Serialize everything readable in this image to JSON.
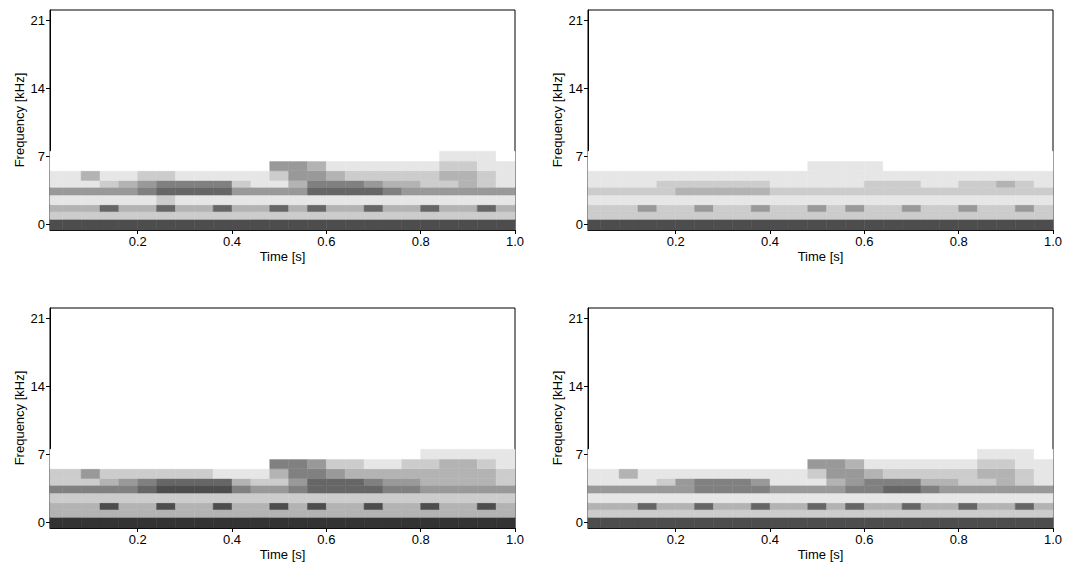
{
  "chart_data": [
    {
      "type": "heatmap",
      "x_label": "Time [s]",
      "y_label": "Frequency [kHz]",
      "xlim": [
        0.014,
        1.0
      ],
      "xticks": [
        0.2,
        0.4,
        0.6,
        0.8,
        {
          "value": 1.0,
          "label": "1.0"
        }
      ],
      "ylim": [
        -0.6,
        22.05
      ],
      "yticks": [
        0,
        7,
        14,
        21
      ],
      "x_edges": [
        0,
        0.04,
        0.08,
        0.12,
        0.16,
        0.2,
        0.24,
        0.28,
        0.32,
        0.36,
        0.4,
        0.44,
        0.48,
        0.52,
        0.56,
        0.6,
        0.64,
        0.68,
        0.72,
        0.76,
        0.8,
        0.84,
        0.88,
        0.92,
        0.96,
        1.0
      ],
      "y_edges": [
        -0.6,
        0.5,
        1.3,
        2.0,
        3.0,
        3.8,
        4.5,
        5.5,
        6.5,
        7.5
      ],
      "zlim": [
        0,
        10
      ],
      "color": "#000000",
      "z": [
        [
          7,
          7,
          7,
          7,
          7,
          7,
          7,
          7,
          7,
          7,
          7,
          7,
          7,
          7,
          7,
          7,
          7,
          7,
          7,
          7,
          7,
          7,
          7,
          7,
          7
        ],
        [
          2,
          2,
          2,
          2,
          2,
          2,
          2,
          2,
          2,
          2,
          2,
          2,
          2,
          2,
          2,
          2,
          2,
          2,
          2,
          2,
          2,
          2,
          2,
          2,
          2
        ],
        [
          3,
          3,
          3,
          6,
          3,
          3,
          6,
          3,
          3,
          6,
          3,
          3,
          6,
          3,
          6,
          3,
          3,
          6,
          3,
          3,
          6,
          3,
          3,
          6,
          3
        ],
        [
          1,
          1,
          1,
          1,
          1,
          1,
          2,
          1,
          1,
          1,
          1,
          1,
          1,
          1,
          1,
          1,
          1,
          1,
          1,
          1,
          1,
          1,
          1,
          1,
          1
        ],
        [
          4,
          4,
          4,
          4,
          4,
          5,
          6,
          6,
          6,
          6,
          4,
          4,
          4,
          4,
          6,
          6,
          6,
          6,
          5,
          4,
          4,
          4,
          4,
          4,
          4
        ],
        [
          1,
          1,
          1,
          2,
          3,
          4,
          5,
          5,
          5,
          5,
          2,
          1,
          1,
          3,
          5,
          5,
          5,
          4,
          3,
          3,
          2,
          2,
          3,
          2,
          1
        ],
        [
          1,
          1,
          3,
          1,
          1,
          2,
          2,
          1,
          1,
          1,
          1,
          1,
          2,
          4,
          4,
          3,
          2,
          2,
          2,
          2,
          2,
          3,
          3,
          2,
          1
        ],
        [
          0,
          0,
          0,
          0,
          0,
          0,
          0,
          0,
          0,
          0,
          0,
          0,
          4,
          4,
          3,
          1,
          1,
          1,
          1,
          1,
          1,
          2,
          2,
          1,
          1
        ],
        [
          0,
          0,
          0,
          0,
          0,
          0,
          0,
          0,
          0,
          0,
          0,
          0,
          0,
          0,
          0,
          0,
          0,
          0,
          0,
          0,
          0,
          1,
          1,
          1,
          0
        ]
      ]
    },
    {
      "type": "heatmap",
      "x_label": "Time [s]",
      "y_label": "Frequency [kHz]",
      "xlim": [
        0.014,
        1.0
      ],
      "xticks": [
        0.2,
        0.4,
        0.6,
        0.8,
        {
          "value": 1.0,
          "label": "1.0"
        }
      ],
      "ylim": [
        -0.6,
        22.05
      ],
      "yticks": [
        0,
        7,
        14,
        21
      ],
      "x_edges": [
        0,
        0.04,
        0.08,
        0.12,
        0.16,
        0.2,
        0.24,
        0.28,
        0.32,
        0.36,
        0.4,
        0.44,
        0.48,
        0.52,
        0.56,
        0.6,
        0.64,
        0.68,
        0.72,
        0.76,
        0.8,
        0.84,
        0.88,
        0.92,
        0.96,
        1.0
      ],
      "y_edges": [
        -0.6,
        0.5,
        1.3,
        2.0,
        3.0,
        3.8,
        4.5,
        5.5,
        6.5,
        7.5
      ],
      "zlim": [
        0,
        10
      ],
      "color": "#000000",
      "z": [
        [
          7,
          7,
          7,
          7,
          7,
          7,
          7,
          7,
          7,
          7,
          7,
          7,
          7,
          7,
          7,
          7,
          7,
          7,
          7,
          7,
          7,
          7,
          7,
          7,
          7
        ],
        [
          2,
          2,
          2,
          2,
          2,
          2,
          2,
          2,
          2,
          2,
          2,
          2,
          2,
          2,
          2,
          2,
          2,
          2,
          2,
          2,
          2,
          2,
          2,
          2,
          2
        ],
        [
          2,
          2,
          2,
          4,
          2,
          2,
          4,
          2,
          2,
          4,
          2,
          2,
          4,
          2,
          4,
          2,
          2,
          4,
          2,
          2,
          4,
          2,
          2,
          4,
          2
        ],
        [
          1,
          1,
          1,
          1,
          1,
          1,
          1,
          1,
          1,
          1,
          1,
          1,
          1,
          1,
          1,
          1,
          1,
          1,
          1,
          1,
          1,
          1,
          1,
          1,
          1
        ],
        [
          2,
          2,
          2,
          2,
          2,
          3,
          3,
          3,
          3,
          3,
          2,
          2,
          2,
          2,
          2,
          2,
          2,
          2,
          2,
          2,
          2,
          2,
          2,
          2,
          2
        ],
        [
          1,
          1,
          1,
          1,
          2,
          2,
          2,
          2,
          2,
          2,
          1,
          1,
          1,
          1,
          1,
          2,
          2,
          2,
          1,
          1,
          2,
          2,
          3,
          2,
          1
        ],
        [
          1,
          1,
          1,
          1,
          1,
          1,
          1,
          1,
          1,
          1,
          1,
          1,
          1,
          1,
          1,
          1,
          1,
          1,
          1,
          1,
          1,
          1,
          1,
          1,
          1
        ],
        [
          0,
          0,
          0,
          0,
          0,
          0,
          0,
          0,
          0,
          0,
          0,
          0,
          1,
          1,
          1,
          1,
          0,
          0,
          0,
          0,
          0,
          0,
          0,
          0,
          0
        ],
        [
          0,
          0,
          0,
          0,
          0,
          0,
          0,
          0,
          0,
          0,
          0,
          0,
          0,
          0,
          0,
          0,
          0,
          0,
          0,
          0,
          0,
          0,
          0,
          0,
          0
        ]
      ]
    },
    {
      "type": "heatmap",
      "x_label": "Time [s]",
      "y_label": "Frequency [kHz]",
      "xlim": [
        0.014,
        1.0
      ],
      "xticks": [
        0.2,
        0.4,
        0.6,
        0.8,
        {
          "value": 1.0,
          "label": "1.0"
        }
      ],
      "ylim": [
        -0.6,
        22.05
      ],
      "yticks": [
        0,
        7,
        14,
        21
      ],
      "x_edges": [
        0,
        0.04,
        0.08,
        0.12,
        0.16,
        0.2,
        0.24,
        0.28,
        0.32,
        0.36,
        0.4,
        0.44,
        0.48,
        0.52,
        0.56,
        0.6,
        0.64,
        0.68,
        0.72,
        0.76,
        0.8,
        0.84,
        0.88,
        0.92,
        0.96,
        1.0
      ],
      "y_edges": [
        -0.6,
        0.5,
        1.3,
        2.0,
        3.0,
        3.8,
        4.5,
        5.5,
        6.5,
        7.5
      ],
      "zlim": [
        0,
        10
      ],
      "color": "#000000",
      "z": [
        [
          8,
          8,
          8,
          8,
          8,
          8,
          8,
          8,
          8,
          8,
          8,
          8,
          8,
          8,
          8,
          8,
          8,
          8,
          8,
          8,
          8,
          8,
          8,
          8,
          8
        ],
        [
          3,
          3,
          3,
          3,
          3,
          3,
          3,
          3,
          3,
          3,
          3,
          3,
          3,
          3,
          3,
          3,
          3,
          3,
          3,
          3,
          3,
          3,
          3,
          3,
          3
        ],
        [
          3,
          3,
          3,
          7,
          3,
          3,
          7,
          3,
          3,
          7,
          3,
          3,
          7,
          3,
          7,
          3,
          3,
          7,
          3,
          3,
          7,
          3,
          3,
          7,
          3
        ],
        [
          2,
          2,
          2,
          2,
          2,
          2,
          2,
          2,
          2,
          2,
          2,
          2,
          2,
          2,
          2,
          2,
          2,
          2,
          2,
          2,
          2,
          2,
          2,
          2,
          2
        ],
        [
          5,
          5,
          5,
          5,
          5,
          6,
          7,
          7,
          7,
          7,
          5,
          4,
          4,
          5,
          6,
          6,
          6,
          6,
          5,
          5,
          4,
          4,
          4,
          4,
          4
        ],
        [
          2,
          2,
          2,
          3,
          4,
          5,
          6,
          6,
          6,
          6,
          3,
          2,
          2,
          4,
          6,
          6,
          6,
          5,
          4,
          4,
          3,
          3,
          3,
          3,
          2
        ],
        [
          2,
          2,
          4,
          2,
          2,
          2,
          2,
          2,
          2,
          1,
          1,
          1,
          3,
          5,
          5,
          4,
          3,
          3,
          3,
          3,
          3,
          3,
          3,
          3,
          2
        ],
        [
          0,
          0,
          0,
          0,
          0,
          0,
          0,
          0,
          0,
          0,
          0,
          0,
          5,
          5,
          4,
          2,
          2,
          1,
          1,
          2,
          2,
          3,
          3,
          2,
          1
        ],
        [
          0,
          0,
          0,
          0,
          0,
          0,
          0,
          0,
          0,
          0,
          0,
          0,
          0,
          0,
          0,
          0,
          0,
          0,
          0,
          0,
          1,
          1,
          1,
          1,
          1
        ]
      ]
    },
    {
      "type": "heatmap",
      "x_label": "Time [s]",
      "y_label": "Frequency [kHz]",
      "xlim": [
        0.014,
        1.0
      ],
      "xticks": [
        0.2,
        0.4,
        0.6,
        0.8,
        {
          "value": 1.0,
          "label": "1.0"
        }
      ],
      "ylim": [
        -0.6,
        22.05
      ],
      "yticks": [
        0,
        7,
        14,
        21
      ],
      "x_edges": [
        0,
        0.04,
        0.08,
        0.12,
        0.16,
        0.2,
        0.24,
        0.28,
        0.32,
        0.36,
        0.4,
        0.44,
        0.48,
        0.52,
        0.56,
        0.6,
        0.64,
        0.68,
        0.72,
        0.76,
        0.8,
        0.84,
        0.88,
        0.92,
        0.96,
        1.0
      ],
      "y_edges": [
        -0.6,
        0.5,
        1.3,
        2.0,
        3.0,
        3.8,
        4.5,
        5.5,
        6.5,
        7.5
      ],
      "zlim": [
        0,
        10
      ],
      "color": "#000000",
      "z": [
        [
          7,
          7,
          7,
          7,
          7,
          7,
          7,
          7,
          7,
          7,
          7,
          7,
          7,
          7,
          7,
          7,
          7,
          7,
          7,
          7,
          7,
          7,
          7,
          7,
          7
        ],
        [
          2,
          2,
          2,
          2,
          2,
          2,
          2,
          2,
          2,
          2,
          2,
          2,
          2,
          2,
          2,
          2,
          2,
          2,
          2,
          2,
          2,
          2,
          2,
          2,
          2
        ],
        [
          3,
          3,
          3,
          6,
          3,
          3,
          6,
          3,
          3,
          6,
          3,
          3,
          6,
          3,
          6,
          3,
          3,
          6,
          3,
          3,
          6,
          3,
          3,
          6,
          3
        ],
        [
          1,
          1,
          1,
          1,
          1,
          1,
          1,
          1,
          1,
          1,
          1,
          1,
          1,
          1,
          1,
          1,
          1,
          1,
          1,
          1,
          1,
          1,
          1,
          1,
          1
        ],
        [
          4,
          4,
          4,
          4,
          4,
          4,
          5,
          5,
          5,
          5,
          4,
          4,
          4,
          4,
          5,
          5,
          6,
          6,
          5,
          4,
          4,
          4,
          4,
          4,
          4
        ],
        [
          1,
          1,
          1,
          1,
          2,
          4,
          5,
          5,
          5,
          4,
          1,
          1,
          1,
          3,
          4,
          5,
          5,
          5,
          3,
          3,
          2,
          2,
          3,
          2,
          1
        ],
        [
          1,
          1,
          3,
          1,
          1,
          1,
          1,
          1,
          1,
          1,
          1,
          1,
          2,
          4,
          4,
          3,
          2,
          2,
          2,
          2,
          2,
          3,
          3,
          2,
          1
        ],
        [
          0,
          0,
          0,
          0,
          0,
          0,
          0,
          0,
          0,
          0,
          0,
          0,
          4,
          4,
          3,
          1,
          1,
          1,
          1,
          1,
          1,
          2,
          2,
          1,
          1
        ],
        [
          0,
          0,
          0,
          0,
          0,
          0,
          0,
          0,
          0,
          0,
          0,
          0,
          0,
          0,
          0,
          0,
          0,
          0,
          0,
          0,
          0,
          1,
          1,
          1,
          0
        ]
      ]
    }
  ]
}
